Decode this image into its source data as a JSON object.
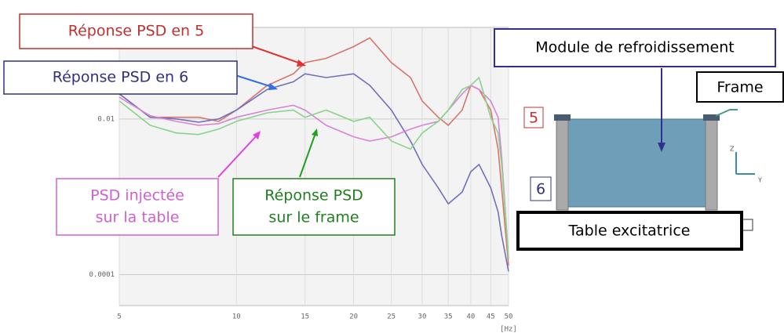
{
  "chart_data": {
    "type": "line",
    "x_log": true,
    "y_log": true,
    "x": [
      5,
      6,
      7,
      8,
      9,
      10,
      12,
      14,
      15,
      17,
      20,
      22,
      25,
      28,
      30,
      33,
      35,
      38,
      40,
      42,
      45,
      47,
      48,
      50
    ],
    "xlim": [
      5,
      50
    ],
    "xticks": [
      5,
      10,
      15,
      20,
      25,
      30,
      35,
      40,
      45,
      50
    ],
    "xlabel": "[Hz]",
    "ylim": [
      4e-05,
      0.15
    ],
    "yticks": [
      0.01,
      0.0001
    ],
    "grid": true,
    "series": [
      {
        "name": "Réponse PSD en 5",
        "color": "#d8746c",
        "values": [
          0.021,
          0.0105,
          0.0105,
          0.0105,
          0.0093,
          0.013,
          0.027,
          0.038,
          0.053,
          0.06,
          0.085,
          0.11,
          0.053,
          0.034,
          0.017,
          0.0105,
          0.0083,
          0.013,
          0.027,
          0.024,
          0.013,
          0.0041,
          0.0013,
          0.00013
        ]
      },
      {
        "name": "Réponse PSD en 6",
        "color": "#7070bc",
        "values": [
          0.021,
          0.0105,
          0.01,
          0.0091,
          0.01,
          0.013,
          0.024,
          0.03,
          0.038,
          0.034,
          0.038,
          0.027,
          0.013,
          0.0052,
          0.0026,
          0.0013,
          0.00081,
          0.00115,
          0.0021,
          0.0026,
          0.0013,
          0.00064,
          0.00032,
          0.00011
        ]
      },
      {
        "name": "PSD injectée sur la table",
        "color": "#d884d8",
        "values": [
          0.019,
          0.011,
          0.0093,
          0.0083,
          0.0087,
          0.0105,
          0.013,
          0.015,
          0.013,
          0.0083,
          0.0059,
          0.0052,
          0.0059,
          0.0074,
          0.0083,
          0.0093,
          0.013,
          0.021,
          0.027,
          0.024,
          0.017,
          0.0105,
          0.0033,
          0.00016
        ]
      },
      {
        "name": "Réponse PSD sur le frame",
        "color": "#88d488",
        "values": [
          0.017,
          0.0083,
          0.0066,
          0.0063,
          0.0074,
          0.0093,
          0.012,
          0.013,
          0.0105,
          0.013,
          0.0093,
          0.0105,
          0.0052,
          0.0041,
          0.0066,
          0.0093,
          0.013,
          0.024,
          0.027,
          0.034,
          0.0105,
          0.0066,
          0.0026,
          0.00016
        ]
      }
    ],
    "annotations": [
      {
        "lines": [
          "Réponse PSD en 5"
        ],
        "color": "#c03030"
      },
      {
        "lines": [
          "Réponse PSD en 6"
        ],
        "color": "#303080"
      },
      {
        "lines": [
          "PSD injectée",
          "sur la table"
        ],
        "color": "#d060d0"
      },
      {
        "lines": [
          "Réponse PSD",
          "sur le frame"
        ],
        "color": "#208020"
      }
    ]
  },
  "diagram": {
    "module": "Module de refroidissement",
    "frame": "Frame",
    "point_5": "5",
    "point_6": "6",
    "table": "Table excitatrice",
    "axis_z": "Z",
    "axis_y": "Y"
  }
}
